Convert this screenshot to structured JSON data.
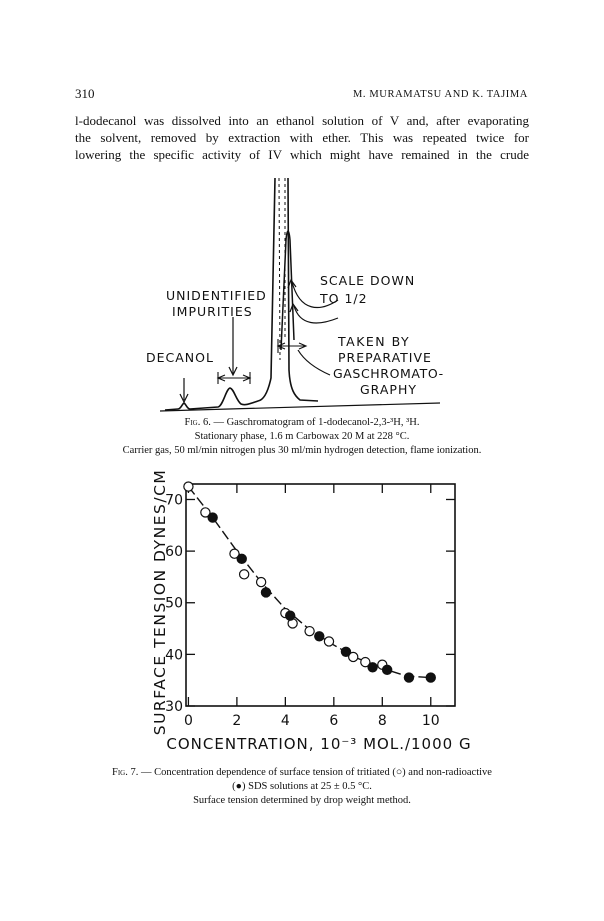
{
  "header": {
    "page_number": "310",
    "authors": "M. MURAMATSU AND K. TAJIMA"
  },
  "body_lines": [
    "l-dodecanol was dissolved into an ethanol solution of V and, after evaporating",
    "the solvent, removed by extraction with ether. This was repeated twice for",
    "lowering the specific activity of IV which might have remained in the crude"
  ],
  "fig6": {
    "labels": {
      "unidentified_1": "UNIDENTIFIED",
      "unidentified_2": "IMPURITIES",
      "decanol": "DECANOL",
      "scale_1": "SCALE   DOWN",
      "scale_2": "TO  1/2",
      "taken_1": "TAKEN   BY",
      "taken_2": "PREPARATIVE",
      "taken_3": "GASCHROMATO-",
      "taken_4": "GRAPHY"
    },
    "caption": {
      "label": "Fig. 6.",
      "line1": " — Gaschromatogram of 1-dodecanol-2,3-³H, ³H.",
      "line2": "Stationary phase, 1.6 m Carbowax 20 M at 228 °C.",
      "line3": "Carrier gas, 50 ml/min nitrogen plus 30 ml/min hydrogen detection, flame ionization."
    }
  },
  "fig7": {
    "caption": {
      "label": "Fig. 7.",
      "line1": " — Concentration dependence of surface tension of tritiated (○) and non-radioactive",
      "line2": "(●) SDS solutions at 25 ± 0.5 °C.",
      "line3": "Surface tension determined by drop weight method."
    }
  },
  "chart_data": {
    "type": "scatter",
    "xlabel": "CONCENTRATION, 10⁻³ MOL./1000 G",
    "ylabel": "SURFACE TENSION DYNES/CM",
    "xlim": [
      0,
      11
    ],
    "ylim": [
      30,
      73
    ],
    "x_ticks": [
      0,
      2,
      4,
      6,
      8,
      10
    ],
    "y_ticks": [
      30,
      40,
      50,
      60,
      70
    ],
    "series": [
      {
        "marker": "open",
        "points": [
          [
            0.0,
            72.5
          ],
          [
            0.7,
            67.5
          ],
          [
            1.9,
            59.5
          ],
          [
            2.3,
            55.5
          ],
          [
            3.0,
            54.0
          ],
          [
            4.0,
            48.0
          ],
          [
            4.3,
            46.0
          ],
          [
            5.0,
            44.5
          ],
          [
            5.8,
            42.5
          ],
          [
            6.8,
            39.5
          ],
          [
            7.3,
            38.5
          ],
          [
            8.0,
            38.0
          ]
        ]
      },
      {
        "marker": "filled",
        "points": [
          [
            1.0,
            66.5
          ],
          [
            2.2,
            58.5
          ],
          [
            3.2,
            52.0
          ],
          [
            4.2,
            47.5
          ],
          [
            5.4,
            43.5
          ],
          [
            6.5,
            40.5
          ],
          [
            7.6,
            37.5
          ],
          [
            8.2,
            37.0
          ],
          [
            9.1,
            35.5
          ],
          [
            10.0,
            35.5
          ]
        ]
      }
    ],
    "curve": [
      [
        0.0,
        72.5
      ],
      [
        1.0,
        66.5
      ],
      [
        2.0,
        60.0
      ],
      [
        3.0,
        54.0
      ],
      [
        4.0,
        48.8
      ],
      [
        5.0,
        44.8
      ],
      [
        6.0,
        41.8
      ],
      [
        7.0,
        39.2
      ],
      [
        8.0,
        37.3
      ],
      [
        9.0,
        35.8
      ],
      [
        10.0,
        35.5
      ]
    ],
    "grid": false
  }
}
